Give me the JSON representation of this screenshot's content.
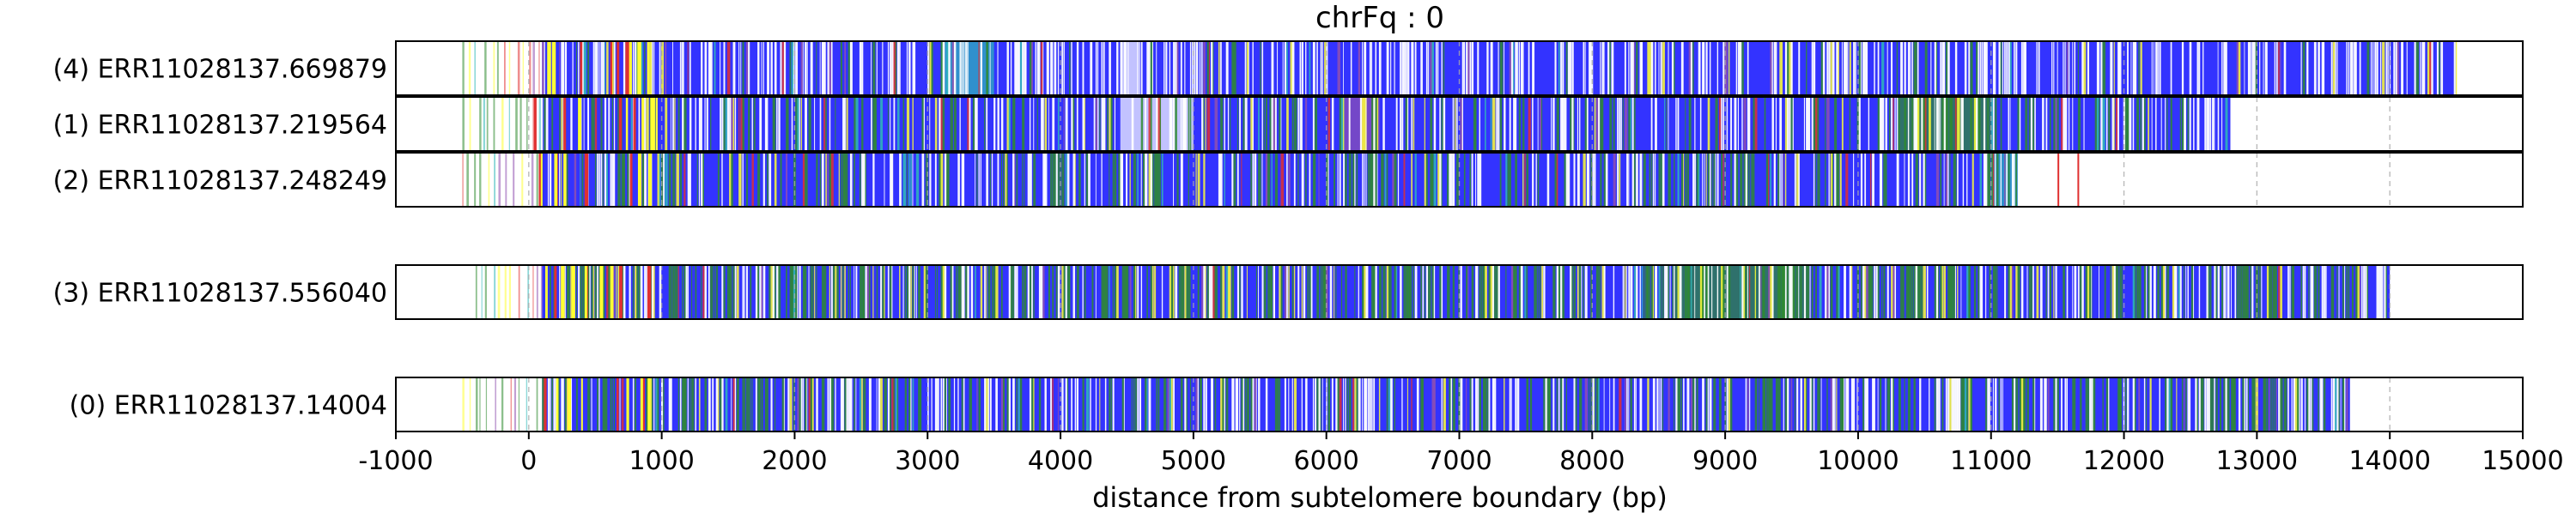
{
  "chart_data": {
    "type": "read-track",
    "title": "chrFq : 0",
    "xlabel": "distance from subtelomere boundary (bp)",
    "xlim": [
      -1000,
      15000
    ],
    "xticks": [
      -1000,
      0,
      1000,
      2000,
      3000,
      4000,
      5000,
      6000,
      7000,
      8000,
      9000,
      10000,
      11000,
      12000,
      13000,
      14000,
      15000
    ],
    "xtick_labels": [
      "-1000",
      "0",
      "1000",
      "2000",
      "3000",
      "4000",
      "5000",
      "6000",
      "7000",
      "8000",
      "9000",
      "10000",
      "11000",
      "12000",
      "13000",
      "14000",
      "15000"
    ],
    "grid": "vertical dashed at x ticks",
    "colors": {
      "base": "#3333ff",
      "green": "#2e8b2e",
      "yellow": "#ffff33",
      "red": "#e03030",
      "cyan": "#2fb8b8",
      "purple": "#9050b0",
      "white": "#ffffff",
      "grid": "#aaaaaa"
    },
    "reads": [
      {
        "label": "(4) ERR11028137.669879",
        "start": -500,
        "dense_start": 100,
        "end": 14500,
        "segments": [
          {
            "x0": 4450,
            "x1": 4600,
            "color": "white"
          },
          {
            "x0": 3100,
            "x1": 3500,
            "color": "cyan"
          }
        ],
        "profile": {
          "white": 0.35,
          "green": 0.06,
          "yellow": 0.03,
          "cyan": 0.02,
          "red": 0.01,
          "purple": 0.02
        }
      },
      {
        "label": "(1) ERR11028137.219564",
        "start": -500,
        "dense_start": 100,
        "end": 12800,
        "segments": [
          {
            "x0": 3000,
            "x1": 4000,
            "color": "base"
          },
          {
            "x0": 4450,
            "x1": 5000,
            "color": "white"
          },
          {
            "x0": 6100,
            "x1": 6400,
            "color": "purple"
          },
          {
            "x0": 10300,
            "x1": 11000,
            "color": "green"
          },
          {
            "x0": 11400,
            "x1": 12800,
            "color": "base"
          }
        ],
        "profile": {
          "white": 0.22,
          "green": 0.16,
          "yellow": 0.04,
          "cyan": 0.02,
          "red": 0.02,
          "purple": 0.02
        }
      },
      {
        "label": "(2) ERR11028137.248249",
        "start": -500,
        "dense_start": 100,
        "end": 11200,
        "segments": [
          {
            "x0": 8800,
            "x1": 10200,
            "color": "base"
          },
          {
            "x0": 11000,
            "x1": 11200,
            "color": "cyan"
          }
        ],
        "outliers": [
          {
            "x": 11500,
            "color": "red"
          },
          {
            "x": 11650,
            "color": "red"
          }
        ],
        "profile": {
          "white": 0.2,
          "green": 0.18,
          "yellow": 0.05,
          "cyan": 0.03,
          "red": 0.02,
          "purple": 0.02
        }
      },
      {
        "label": "(3) ERR11028137.556040",
        "start": -400,
        "dense_start": 100,
        "end": 14000,
        "segments": [
          {
            "x0": 8600,
            "x1": 9600,
            "color": "green"
          }
        ],
        "profile": {
          "white": 0.22,
          "green": 0.3,
          "yellow": 0.07,
          "cyan": 0.02,
          "red": 0.01,
          "purple": 0.02
        }
      },
      {
        "label": "(0) ERR11028137.14004",
        "start": -500,
        "dense_start": 100,
        "end": 13700,
        "segments": [
          {
            "x0": 5200,
            "x1": 6200,
            "color": "base"
          },
          {
            "x0": 8000,
            "x1": 8600,
            "color": "base"
          }
        ],
        "profile": {
          "white": 0.25,
          "green": 0.24,
          "yellow": 0.04,
          "cyan": 0.02,
          "red": 0.01,
          "purple": 0.02
        }
      }
    ]
  }
}
